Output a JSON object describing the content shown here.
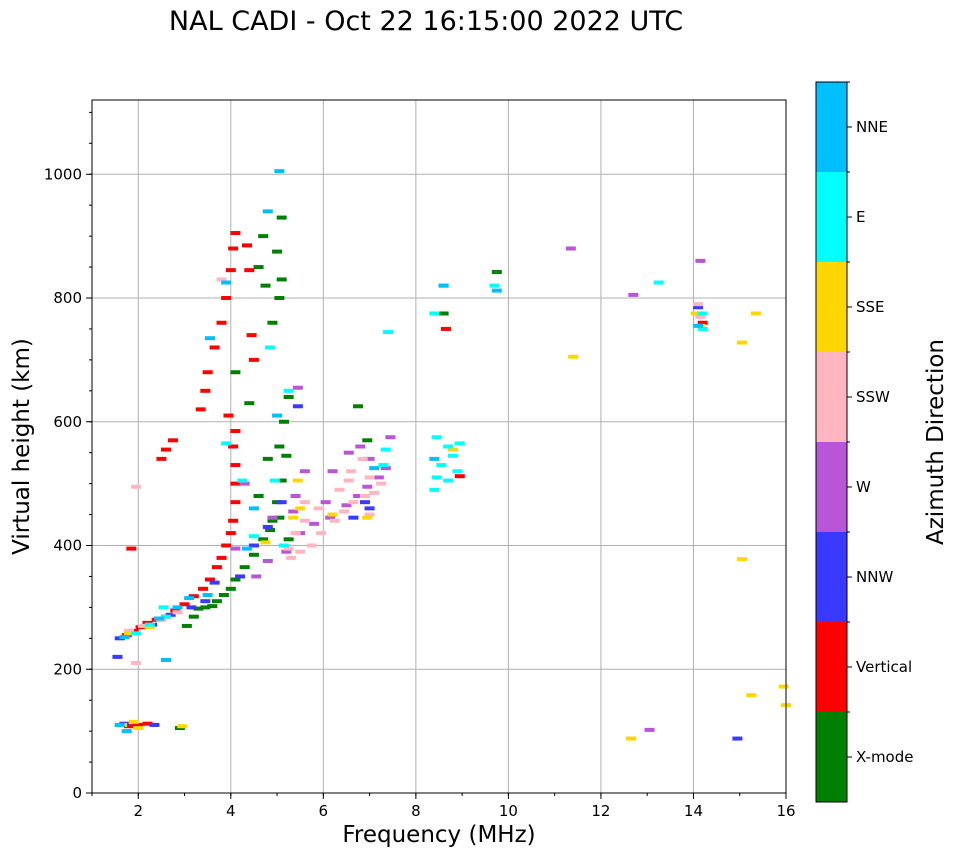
{
  "chart_data": {
    "type": "scatter",
    "title": "NAL CADI - Oct 22 16:15:00 2022 UTC",
    "xlabel": "Frequency (MHz)",
    "ylabel": "Virtual height (km)",
    "xlim": [
      1,
      16
    ],
    "ylim": [
      0,
      1120
    ],
    "x_ticks": [
      2,
      4,
      6,
      8,
      10,
      12,
      14,
      16
    ],
    "y_ticks": [
      0,
      200,
      400,
      600,
      800,
      1000
    ],
    "grid": true,
    "colorbar": {
      "label": "Azimuth Direction",
      "categories": [
        {
          "name": "X-mode",
          "color": "#008000"
        },
        {
          "name": "Vertical",
          "color": "#ff0000"
        },
        {
          "name": "NNW",
          "color": "#3939ff"
        },
        {
          "name": "W",
          "color": "#b856d7"
        },
        {
          "name": "SSW",
          "color": "#ffb6c1"
        },
        {
          "name": "SSE",
          "color": "#ffd700"
        },
        {
          "name": "E",
          "color": "#00ffff"
        },
        {
          "name": "NNE",
          "color": "#00bfff"
        }
      ]
    },
    "series": [
      {
        "name": "X-mode",
        "points": [
          [
            3.05,
            270
          ],
          [
            3.2,
            285
          ],
          [
            3.3,
            298
          ],
          [
            3.45,
            300
          ],
          [
            3.6,
            302
          ],
          [
            3.7,
            310
          ],
          [
            3.85,
            320
          ],
          [
            4.0,
            330
          ],
          [
            4.1,
            345
          ],
          [
            4.3,
            365
          ],
          [
            4.5,
            385
          ],
          [
            4.7,
            410
          ],
          [
            4.9,
            440
          ],
          [
            5.0,
            470
          ],
          [
            5.1,
            505
          ],
          [
            5.2,
            545
          ],
          [
            4.6,
            480
          ],
          [
            4.8,
            540
          ],
          [
            5.05,
            560
          ],
          [
            5.15,
            600
          ],
          [
            5.25,
            640
          ],
          [
            4.9,
            760
          ],
          [
            5.05,
            800
          ],
          [
            5.1,
            830
          ],
          [
            5.0,
            875
          ],
          [
            4.7,
            900
          ],
          [
            5.1,
            930
          ],
          [
            4.75,
            820
          ],
          [
            4.6,
            850
          ],
          [
            4.1,
            680
          ],
          [
            4.4,
            630
          ],
          [
            6.75,
            625
          ],
          [
            6.95,
            570
          ],
          [
            8.6,
            775
          ],
          [
            9.75,
            842
          ],
          [
            1.95,
            108
          ],
          [
            2.9,
            105
          ],
          [
            5.05,
            445
          ],
          [
            5.25,
            410
          ],
          [
            4.85,
            425
          ]
        ]
      },
      {
        "name": "Vertical",
        "points": [
          [
            1.75,
            255
          ],
          [
            1.9,
            262
          ],
          [
            2.05,
            268
          ],
          [
            2.2,
            275
          ],
          [
            2.4,
            280
          ],
          [
            2.6,
            285
          ],
          [
            2.8,
            295
          ],
          [
            3.0,
            305
          ],
          [
            3.2,
            318
          ],
          [
            3.4,
            330
          ],
          [
            3.55,
            345
          ],
          [
            3.7,
            365
          ],
          [
            3.8,
            380
          ],
          [
            3.9,
            400
          ],
          [
            4.0,
            420
          ],
          [
            4.05,
            440
          ],
          [
            4.1,
            470
          ],
          [
            4.1,
            500
          ],
          [
            4.1,
            530
          ],
          [
            4.05,
            560
          ],
          [
            4.1,
            585
          ],
          [
            3.95,
            610
          ],
          [
            3.35,
            620
          ],
          [
            3.45,
            650
          ],
          [
            3.5,
            680
          ],
          [
            3.65,
            720
          ],
          [
            3.8,
            760
          ],
          [
            3.9,
            800
          ],
          [
            4.0,
            845
          ],
          [
            4.05,
            880
          ],
          [
            4.1,
            905
          ],
          [
            4.35,
            885
          ],
          [
            4.4,
            845
          ],
          [
            4.45,
            740
          ],
          [
            4.5,
            700
          ],
          [
            2.5,
            540
          ],
          [
            2.6,
            555
          ],
          [
            2.75,
            570
          ],
          [
            1.85,
            395
          ],
          [
            1.8,
            108
          ],
          [
            2.0,
            110
          ],
          [
            2.2,
            112
          ],
          [
            8.65,
            750
          ],
          [
            8.95,
            512
          ],
          [
            14.2,
            760
          ],
          [
            14.15,
            770
          ]
        ]
      },
      {
        "name": "NNW",
        "points": [
          [
            1.6,
            250
          ],
          [
            1.9,
            258
          ],
          [
            2.3,
            272
          ],
          [
            2.7,
            288
          ],
          [
            3.15,
            300
          ],
          [
            3.45,
            310
          ],
          [
            3.65,
            340
          ],
          [
            4.2,
            350
          ],
          [
            4.5,
            400
          ],
          [
            4.8,
            430
          ],
          [
            5.1,
            470
          ],
          [
            5.45,
            625
          ],
          [
            6.65,
            445
          ],
          [
            6.9,
            470
          ],
          [
            7.0,
            460
          ],
          [
            14.1,
            785
          ],
          [
            14.95,
            88
          ],
          [
            1.55,
            220
          ],
          [
            1.7,
            112
          ],
          [
            2.35,
            110
          ]
        ]
      },
      {
        "name": "W",
        "points": [
          [
            4.55,
            350
          ],
          [
            4.8,
            375
          ],
          [
            5.2,
            390
          ],
          [
            5.5,
            420
          ],
          [
            5.8,
            435
          ],
          [
            6.15,
            445
          ],
          [
            6.5,
            465
          ],
          [
            6.75,
            480
          ],
          [
            6.95,
            495
          ],
          [
            7.2,
            510
          ],
          [
            7.35,
            525
          ],
          [
            5.4,
            480
          ],
          [
            5.6,
            520
          ],
          [
            6.05,
            470
          ],
          [
            6.55,
            550
          ],
          [
            6.8,
            560
          ],
          [
            7.0,
            540
          ],
          [
            7.45,
            575
          ],
          [
            6.2,
            520
          ],
          [
            5.45,
            655
          ],
          [
            4.9,
            445
          ],
          [
            12.7,
            805
          ],
          [
            13.05,
            102
          ],
          [
            11.35,
            880
          ],
          [
            14.15,
            860
          ],
          [
            4.1,
            395
          ],
          [
            4.3,
            500
          ],
          [
            5.35,
            455
          ]
        ]
      },
      {
        "name": "SSW",
        "points": [
          [
            1.8,
            262
          ],
          [
            2.1,
            270
          ],
          [
            2.5,
            280
          ],
          [
            2.85,
            292
          ],
          [
            5.3,
            380
          ],
          [
            5.5,
            390
          ],
          [
            5.75,
            400
          ],
          [
            5.95,
            420
          ],
          [
            6.25,
            440
          ],
          [
            6.45,
            455
          ],
          [
            6.65,
            470
          ],
          [
            6.9,
            480
          ],
          [
            7.1,
            485
          ],
          [
            7.25,
            500
          ],
          [
            5.4,
            420
          ],
          [
            5.6,
            440
          ],
          [
            5.9,
            460
          ],
          [
            6.35,
            490
          ],
          [
            6.6,
            520
          ],
          [
            6.85,
            540
          ],
          [
            7.0,
            510
          ],
          [
            5.25,
            395
          ],
          [
            5.6,
            470
          ],
          [
            14.1,
            790
          ],
          [
            14.15,
            770
          ],
          [
            1.95,
            495
          ],
          [
            1.95,
            210
          ],
          [
            3.8,
            830
          ],
          [
            7.0,
            450
          ],
          [
            6.55,
            505
          ]
        ]
      },
      {
        "name": "SSE",
        "points": [
          [
            1.65,
            110
          ],
          [
            1.9,
            115
          ],
          [
            2.0,
            105
          ],
          [
            2.95,
            108
          ],
          [
            1.8,
            258
          ],
          [
            2.25,
            268
          ],
          [
            5.35,
            445
          ],
          [
            5.45,
            505
          ],
          [
            6.2,
            450
          ],
          [
            6.95,
            445
          ],
          [
            8.8,
            555
          ],
          [
            14.05,
            775
          ],
          [
            14.15,
            755
          ],
          [
            12.65,
            88
          ],
          [
            15.05,
            728
          ],
          [
            15.35,
            775
          ],
          [
            15.25,
            158
          ],
          [
            15.05,
            378
          ],
          [
            15.95,
            172
          ],
          [
            16.0,
            142
          ],
          [
            11.4,
            705
          ],
          [
            5.5,
            460
          ],
          [
            4.75,
            405
          ]
        ]
      },
      {
        "name": "E",
        "points": [
          [
            8.4,
            490
          ],
          [
            8.45,
            510
          ],
          [
            8.55,
            530
          ],
          [
            8.7,
            505
          ],
          [
            8.9,
            520
          ],
          [
            8.8,
            545
          ],
          [
            8.95,
            565
          ],
          [
            8.45,
            575
          ],
          [
            8.7,
            560
          ],
          [
            8.6,
            820
          ],
          [
            8.4,
            775
          ],
          [
            9.7,
            820
          ],
          [
            13.25,
            825
          ],
          [
            14.2,
            775
          ],
          [
            14.2,
            750
          ],
          [
            7.4,
            745
          ],
          [
            7.35,
            555
          ],
          [
            7.3,
            530
          ],
          [
            5.15,
            400
          ],
          [
            4.5,
            415
          ],
          [
            4.95,
            505
          ],
          [
            4.25,
            505
          ],
          [
            2.25,
            272
          ],
          [
            2.6,
            285
          ],
          [
            4.85,
            720
          ],
          [
            5.25,
            650
          ],
          [
            3.9,
            565
          ],
          [
            2.55,
            300
          ],
          [
            1.95,
            258
          ]
        ]
      },
      {
        "name": "NNE",
        "points": [
          [
            5.05,
            1005
          ],
          [
            4.8,
            940
          ],
          [
            8.6,
            820
          ],
          [
            9.75,
            812
          ],
          [
            14.1,
            755
          ],
          [
            8.4,
            540
          ],
          [
            1.7,
            252
          ],
          [
            2.45,
            282
          ],
          [
            2.85,
            300
          ],
          [
            3.1,
            315
          ],
          [
            3.5,
            320
          ],
          [
            4.35,
            395
          ],
          [
            4.5,
            460
          ],
          [
            5.0,
            610
          ],
          [
            3.55,
            735
          ],
          [
            3.9,
            825
          ],
          [
            1.6,
            110
          ],
          [
            1.75,
            100
          ],
          [
            2.6,
            215
          ],
          [
            7.1,
            525
          ]
        ]
      }
    ]
  }
}
